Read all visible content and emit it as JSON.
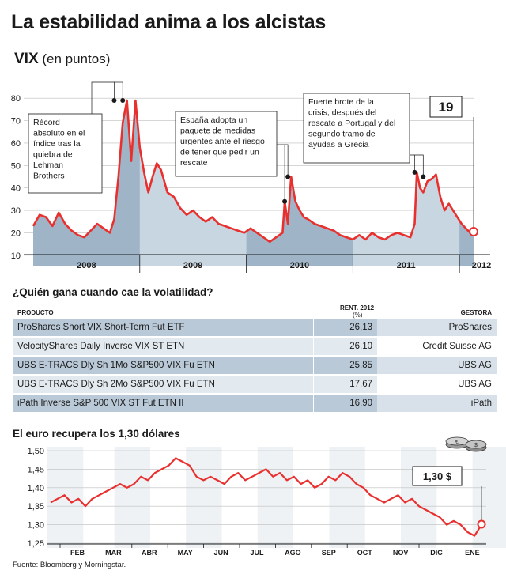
{
  "title": "La estabilidad anima a los alcistas",
  "vix": {
    "name": "VIX",
    "unit": "(en puntos)",
    "current_value": "19",
    "annotations": [
      "Récord absoluto en el índice tras la quiebra de Lehman Brothers",
      "España adopta un paquete de medidas urgentes ante el riesgo de tener que pedir un rescate",
      "Fuerte brote de la crisis, después del rescate a Portugal y del segundo tramo de ayudas a Grecia"
    ]
  },
  "funds_table": {
    "title": "¿Quién gana cuando cae la volatilidad?",
    "headers": {
      "product": "PRODUCTO",
      "return": "RENT. 2012",
      "return_unit": "(%)",
      "manager": "GESTORA"
    },
    "rows": [
      {
        "product": "ProShares Short VIX Short-Term Fut ETF",
        "return": "26,13",
        "manager": "ProShares"
      },
      {
        "product": "VelocityShares Daily Inverse VIX ST ETN",
        "return": "26,10",
        "manager": "Credit Suisse AG"
      },
      {
        "product": "UBS E-TRACS Dly Sh 1Mo S&P500 VIX Fu ETN",
        "return": "25,85",
        "manager": "UBS AG"
      },
      {
        "product": "UBS E-TRACS Dly Sh 2Mo S&P500 VIX Fu ETN",
        "return": "17,67",
        "manager": "UBS AG"
      },
      {
        "product": "iPath Inverse S&P 500 VIX ST Fut ETN II",
        "return": "16,90",
        "manager": "iPath"
      }
    ]
  },
  "euro": {
    "title": "El euro recupera los 1,30 dólares",
    "current_value": "1,30 $"
  },
  "source": "Fuente: Bloomberg y Morningstar.",
  "colors": {
    "line": "#e8312f",
    "area_dark": "#9fb5c7",
    "area_light": "#c8d6e2",
    "text": "#1a1a1a",
    "band": "#ffffff"
  },
  "chart_data": [
    {
      "type": "area",
      "title": "VIX",
      "ylabel": "(en puntos)",
      "ylim": [
        5,
        85
      ],
      "yticks": [
        10,
        20,
        30,
        40,
        50,
        60,
        70,
        80
      ],
      "x_labels": [
        "2008",
        "2009",
        "2010",
        "2011",
        "2012"
      ],
      "x": [
        2008.0,
        2008.06,
        2008.12,
        2008.18,
        2008.24,
        2008.3,
        2008.36,
        2008.42,
        2008.48,
        2008.54,
        2008.6,
        2008.66,
        2008.72,
        2008.76,
        2008.8,
        2008.84,
        2008.88,
        2008.92,
        2008.96,
        2009.0,
        2009.04,
        2009.08,
        2009.12,
        2009.16,
        2009.2,
        2009.26,
        2009.32,
        2009.38,
        2009.44,
        2009.5,
        2009.56,
        2009.62,
        2009.68,
        2009.74,
        2009.8,
        2009.86,
        2009.92,
        2009.98,
        2010.04,
        2010.1,
        2010.16,
        2010.22,
        2010.28,
        2010.34,
        2010.36,
        2010.39,
        2010.42,
        2010.46,
        2010.5,
        2010.54,
        2010.58,
        2010.64,
        2010.7,
        2010.76,
        2010.82,
        2010.88,
        2010.94,
        2011.0,
        2011.06,
        2011.12,
        2011.18,
        2011.24,
        2011.3,
        2011.36,
        2011.42,
        2011.48,
        2011.54,
        2011.58,
        2011.6,
        2011.63,
        2011.66,
        2011.7,
        2011.74,
        2011.78,
        2011.82,
        2011.86,
        2011.9,
        2011.94,
        2011.98,
        2012.02,
        2012.06,
        2012.1,
        2012.14
      ],
      "series": [
        {
          "values": [
            23,
            28,
            27,
            23,
            29,
            24,
            21,
            19,
            18,
            21,
            24,
            22,
            20,
            26,
            45,
            69,
            79,
            52,
            79,
            58,
            47,
            38,
            45,
            51,
            48,
            38,
            36,
            31,
            28,
            30,
            27,
            25,
            27,
            24,
            23,
            22,
            21,
            20,
            22,
            20,
            18,
            16,
            18,
            20,
            34,
            24,
            45,
            34,
            30,
            27,
            26,
            24,
            23,
            22,
            21,
            19,
            18,
            17,
            19,
            17,
            20,
            18,
            17,
            19,
            20,
            19,
            18,
            24,
            47,
            40,
            38,
            43,
            44,
            46,
            36,
            30,
            33,
            30,
            27,
            24,
            22,
            20,
            19
          ]
        }
      ]
    },
    {
      "type": "line",
      "title": "El euro recupera los 1,30 dólares",
      "ylim": [
        1.25,
        1.5
      ],
      "yticks": [
        "1,50",
        "1,45",
        "1,40",
        "1,35",
        "1,30",
        "1,25"
      ],
      "categories": [
        "FEB",
        "MAR",
        "ABR",
        "MAY",
        "JUN",
        "JUL",
        "AGO",
        "SEP",
        "OCT",
        "NOV",
        "DIC",
        "ENE"
      ],
      "x": [
        0.0,
        0.2,
        0.4,
        0.6,
        0.8,
        1.0,
        1.2,
        1.4,
        1.6,
        1.8,
        2.0,
        2.2,
        2.4,
        2.6,
        2.8,
        3.0,
        3.2,
        3.4,
        3.6,
        3.8,
        4.0,
        4.2,
        4.4,
        4.6,
        4.8,
        5.0,
        5.2,
        5.4,
        5.6,
        5.8,
        6.0,
        6.2,
        6.4,
        6.6,
        6.8,
        7.0,
        7.2,
        7.4,
        7.6,
        7.8,
        8.0,
        8.2,
        8.4,
        8.6,
        8.8,
        9.0,
        9.2,
        9.4,
        9.6,
        9.8,
        10.0,
        10.2,
        10.4,
        10.6,
        10.8,
        11.0,
        11.2,
        11.4,
        11.6,
        11.8,
        12.0,
        12.2,
        12.4
      ],
      "series": [
        {
          "values": [
            1.36,
            1.37,
            1.38,
            1.36,
            1.37,
            1.35,
            1.37,
            1.38,
            1.39,
            1.4,
            1.41,
            1.4,
            1.41,
            1.43,
            1.42,
            1.44,
            1.45,
            1.46,
            1.48,
            1.47,
            1.46,
            1.43,
            1.42,
            1.43,
            1.42,
            1.41,
            1.43,
            1.44,
            1.42,
            1.43,
            1.44,
            1.45,
            1.43,
            1.44,
            1.42,
            1.43,
            1.41,
            1.42,
            1.4,
            1.41,
            1.43,
            1.42,
            1.44,
            1.43,
            1.41,
            1.4,
            1.38,
            1.37,
            1.36,
            1.37,
            1.38,
            1.36,
            1.37,
            1.35,
            1.34,
            1.33,
            1.32,
            1.3,
            1.31,
            1.3,
            1.28,
            1.27,
            1.3
          ]
        }
      ]
    }
  ]
}
